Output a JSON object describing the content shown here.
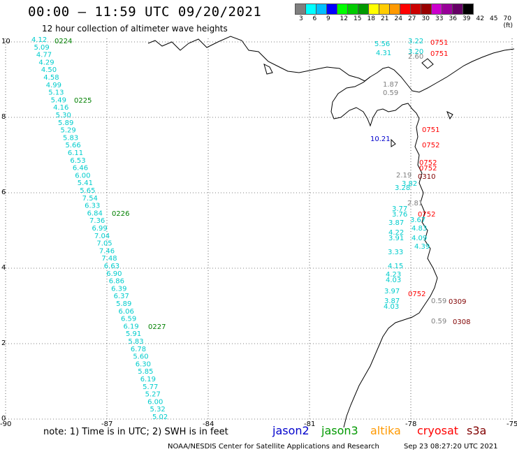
{
  "header": {
    "title": "00:00 – 11:59 UTC 09/20/2021",
    "subtitle": "12 hour collection of altimeter wave heights"
  },
  "scale": {
    "colors": [
      "#7f7f7f",
      "#00ffff",
      "#00bfff",
      "#0000ff",
      "#00ff00",
      "#00cc00",
      "#009900",
      "#ffff00",
      "#ffcc00",
      "#ff9900",
      "#ff0000",
      "#cc0000",
      "#990000",
      "#cc00cc",
      "#990099",
      "#660066",
      "#000000"
    ],
    "labels": [
      "3",
      "6",
      "9",
      "12",
      "15",
      "18",
      "21",
      "24",
      "27",
      "30",
      "33",
      "36",
      "39",
      "42",
      "45",
      "70 (ft)"
    ]
  },
  "axes": {
    "x_ticks": [
      "-90",
      "-87",
      "-84",
      "-81",
      "-78",
      "-75"
    ],
    "y_ticks": [
      "0",
      "2",
      "4",
      "6",
      "8",
      "10"
    ]
  },
  "pass_labels": [
    {
      "text": "0224",
      "color": "#008000"
    },
    {
      "text": "0225",
      "color": "#008000"
    },
    {
      "text": "0226",
      "color": "#008000"
    },
    {
      "text": "0227",
      "color": "#008000"
    },
    {
      "text": "0751",
      "color": "#ff0000"
    },
    {
      "text": "0751",
      "color": "#ff0000"
    },
    {
      "text": "0751",
      "color": "#ff0000"
    },
    {
      "text": "0752",
      "color": "#ff0000"
    },
    {
      "text": "0752",
      "color": "#ff0000"
    },
    {
      "text": "0752",
      "color": "#ff0000"
    },
    {
      "text": "0752",
      "color": "#ff0000"
    },
    {
      "text": "0752",
      "color": "#ff0000"
    },
    {
      "text": "0310",
      "color": "#800000"
    },
    {
      "text": "0309",
      "color": "#800000"
    },
    {
      "text": "0308",
      "color": "#800000"
    }
  ],
  "track_values": [
    "4.12",
    "5.09",
    "4.77",
    "4.29",
    "4.50",
    "4.58",
    "4.99",
    "5.13",
    "5.49",
    "4.16",
    "5.30",
    "5.89",
    "5.29",
    "5.83",
    "5.66",
    "6.11",
    "6.53",
    "6.46",
    "6.00",
    "5.41",
    "5.65",
    "7.54",
    "6.33",
    "6.84",
    "7.36",
    "6.99",
    "7.04",
    "7.05",
    "7.46",
    "7.48",
    "6.63",
    "6.90",
    "6.86",
    "6.39",
    "6.37",
    "5.89",
    "6.06",
    "6.59",
    "6.19",
    "5.91",
    "5.83",
    "6.78",
    "5.60",
    "6.30",
    "5.85",
    "6.19",
    "5.77",
    "5.27",
    "6.00",
    "5.32",
    "5.02"
  ],
  "coastal_values": [
    {
      "text": "5.56",
      "color": "#00cccc"
    },
    {
      "text": "4.31",
      "color": "#00cccc"
    },
    {
      "text": "3.22",
      "color": "#00cccc"
    },
    {
      "text": "3.20",
      "color": "#00cccc"
    },
    {
      "text": "2.60",
      "color": "#7f7f7f"
    },
    {
      "text": "1.87",
      "color": "#7f7f7f"
    },
    {
      "text": "0.59",
      "color": "#7f7f7f"
    },
    {
      "text": "10.21",
      "color": "#0000cc"
    },
    {
      "text": "3.77",
      "color": "#00cccc"
    },
    {
      "text": "3.76",
      "color": "#00cccc"
    },
    {
      "text": "3.87",
      "color": "#00cccc"
    },
    {
      "text": "4.22",
      "color": "#00cccc"
    },
    {
      "text": "3.91",
      "color": "#00cccc"
    },
    {
      "text": "4.83",
      "color": "#00cccc"
    },
    {
      "text": "4.09",
      "color": "#00cccc"
    },
    {
      "text": "4.39",
      "color": "#00cccc"
    },
    {
      "text": "3.33",
      "color": "#00cccc"
    },
    {
      "text": "4.15",
      "color": "#00cccc"
    },
    {
      "text": "4.23",
      "color": "#00cccc"
    },
    {
      "text": "4.03",
      "color": "#00cccc"
    },
    {
      "text": "3.97",
      "color": "#00cccc"
    },
    {
      "text": "3.87",
      "color": "#00cccc"
    },
    {
      "text": "4.03",
      "color": "#00cccc"
    },
    {
      "text": "3.67",
      "color": "#00cccc"
    },
    {
      "text": "2.81",
      "color": "#7f7f7f"
    },
    {
      "text": "0.59",
      "color": "#7f7f7f"
    },
    {
      "text": "0.59",
      "color": "#7f7f7f"
    },
    {
      "text": "3.28",
      "color": "#00cccc"
    },
    {
      "text": "3.82",
      "color": "#00cccc"
    },
    {
      "text": "2.19",
      "color": "#7f7f7f"
    }
  ],
  "footer": {
    "note": "note: 1) Time is in UTC; 2) SWH is in feet",
    "satellites": [
      {
        "name": "jason2",
        "color": "#0000cc"
      },
      {
        "name": "jason3",
        "color": "#009900"
      },
      {
        "name": "altika",
        "color": "#ff9900"
      },
      {
        "name": "cryosat",
        "color": "#ff0000"
      },
      {
        "name": "s3a",
        "color": "#800000"
      }
    ],
    "credit": "NOAA/NESDIS Center for Satellite Applications and Research",
    "timestamp": "Sep 23 08:27:20 UTC 2021"
  }
}
